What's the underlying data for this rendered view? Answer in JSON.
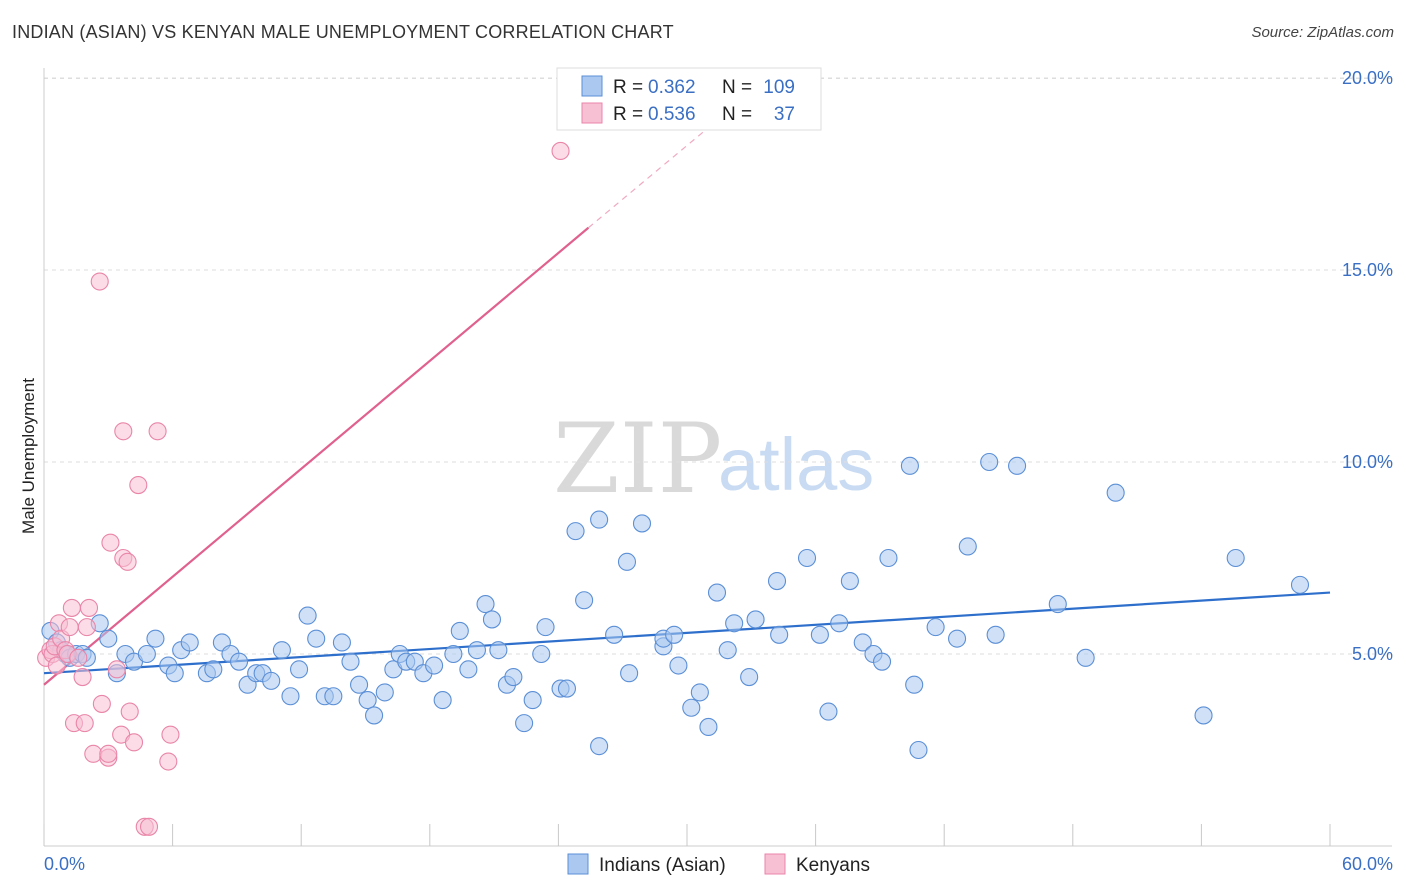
{
  "title": "INDIAN (ASIAN) VS KENYAN MALE UNEMPLOYMENT CORRELATION CHART",
  "source": "Source: ZipAtlas.com",
  "watermark": {
    "zip": "ZIP",
    "atlas": "atlas"
  },
  "colors": {
    "blue_fill": "#aac8f0",
    "blue_stroke": "#5b8fd6",
    "blue_line": "#2e6fcc",
    "pink_fill": "#f7c0d3",
    "pink_stroke": "#e985a8",
    "pink_line": "#e0608e",
    "grid": "#dddddd",
    "tick_text": "#3a6fc4"
  },
  "legend_top": {
    "rows": [
      {
        "r_label": "R =",
        "r_value": "0.362",
        "n_label": "N =",
        "n_value": "109",
        "series": "blue"
      },
      {
        "r_label": "R =",
        "r_value": "0.536",
        "n_label": "N =",
        "n_value": "37",
        "series": "pink"
      }
    ]
  },
  "legend_bottom": [
    {
      "label": "Indians (Asian)",
      "series": "blue"
    },
    {
      "label": "Kenyans",
      "series": "pink"
    }
  ],
  "chart_data": {
    "type": "scatter",
    "title": "INDIAN (ASIAN) VS KENYAN MALE UNEMPLOYMENT CORRELATION CHART",
    "xlabel": "",
    "ylabel": "Male Unemployment",
    "xlim": [
      0,
      60
    ],
    "ylim": [
      0,
      20
    ],
    "x_tick_labels": [
      "0.0%",
      "60.0%"
    ],
    "y_ticks": [
      5,
      10,
      15,
      20
    ],
    "y_tick_labels": [
      "5.0%",
      "10.0%",
      "15.0%",
      "20.0%"
    ],
    "grid": "horizontal dashed",
    "legend_placement": "top-center and bottom-center",
    "series": [
      {
        "name": "Indians (Asian)",
        "r": 0.362,
        "n": 109,
        "trendline": {
          "x": [
            0,
            60
          ],
          "y": [
            4.5,
            6.6
          ]
        },
        "points": [
          [
            0.3,
            5.6
          ],
          [
            0.6,
            5.3
          ],
          [
            0.8,
            5.1
          ],
          [
            1.0,
            5.0
          ],
          [
            1.2,
            4.9
          ],
          [
            1.5,
            5.0
          ],
          [
            1.8,
            5.0
          ],
          [
            2.0,
            4.9
          ],
          [
            2.6,
            5.8
          ],
          [
            3.0,
            5.4
          ],
          [
            3.4,
            4.5
          ],
          [
            3.8,
            5.0
          ],
          [
            4.2,
            4.8
          ],
          [
            4.8,
            5.0
          ],
          [
            5.2,
            5.4
          ],
          [
            5.8,
            4.7
          ],
          [
            6.1,
            4.5
          ],
          [
            6.4,
            5.1
          ],
          [
            6.8,
            5.3
          ],
          [
            7.6,
            4.5
          ],
          [
            7.9,
            4.6
          ],
          [
            8.3,
            5.3
          ],
          [
            8.7,
            5.0
          ],
          [
            9.1,
            4.8
          ],
          [
            9.5,
            4.2
          ],
          [
            9.9,
            4.5
          ],
          [
            10.2,
            4.5
          ],
          [
            10.6,
            4.3
          ],
          [
            11.1,
            5.1
          ],
          [
            11.5,
            3.9
          ],
          [
            11.9,
            4.6
          ],
          [
            12.3,
            6.0
          ],
          [
            12.7,
            5.4
          ],
          [
            13.1,
            3.9
          ],
          [
            13.5,
            3.9
          ],
          [
            13.9,
            5.3
          ],
          [
            14.3,
            4.8
          ],
          [
            14.7,
            4.2
          ],
          [
            15.1,
            3.8
          ],
          [
            15.4,
            3.4
          ],
          [
            15.9,
            4.0
          ],
          [
            16.3,
            4.6
          ],
          [
            16.6,
            5.0
          ],
          [
            16.9,
            4.8
          ],
          [
            17.3,
            4.8
          ],
          [
            17.7,
            4.5
          ],
          [
            18.2,
            4.7
          ],
          [
            18.6,
            3.8
          ],
          [
            19.1,
            5.0
          ],
          [
            19.4,
            5.6
          ],
          [
            19.8,
            4.6
          ],
          [
            20.2,
            5.1
          ],
          [
            20.6,
            6.3
          ],
          [
            20.9,
            5.9
          ],
          [
            21.2,
            5.1
          ],
          [
            21.6,
            4.2
          ],
          [
            21.9,
            4.4
          ],
          [
            22.4,
            3.2
          ],
          [
            22.8,
            3.8
          ],
          [
            23.2,
            5.0
          ],
          [
            23.4,
            5.7
          ],
          [
            24.1,
            4.1
          ],
          [
            24.4,
            4.1
          ],
          [
            24.8,
            8.2
          ],
          [
            25.2,
            6.4
          ],
          [
            25.9,
            8.5
          ],
          [
            25.9,
            2.6
          ],
          [
            26.6,
            5.5
          ],
          [
            27.2,
            7.4
          ],
          [
            27.3,
            4.5
          ],
          [
            27.9,
            8.4
          ],
          [
            28.9,
            5.2
          ],
          [
            28.9,
            5.4
          ],
          [
            29.4,
            5.5
          ],
          [
            29.6,
            4.7
          ],
          [
            30.2,
            3.6
          ],
          [
            30.6,
            4.0
          ],
          [
            31.0,
            3.1
          ],
          [
            31.4,
            6.6
          ],
          [
            31.9,
            5.1
          ],
          [
            32.2,
            5.8
          ],
          [
            32.9,
            4.4
          ],
          [
            33.2,
            5.9
          ],
          [
            34.2,
            6.9
          ],
          [
            34.3,
            5.5
          ],
          [
            35.6,
            7.5
          ],
          [
            36.2,
            5.5
          ],
          [
            36.6,
            3.5
          ],
          [
            37.1,
            5.8
          ],
          [
            37.6,
            6.9
          ],
          [
            38.2,
            5.3
          ],
          [
            38.7,
            5.0
          ],
          [
            39.1,
            4.8
          ],
          [
            39.4,
            7.5
          ],
          [
            40.4,
            9.9
          ],
          [
            40.6,
            4.2
          ],
          [
            40.8,
            2.5
          ],
          [
            41.6,
            5.7
          ],
          [
            42.6,
            5.4
          ],
          [
            43.1,
            7.8
          ],
          [
            44.1,
            10.0
          ],
          [
            44.4,
            5.5
          ],
          [
            45.4,
            9.9
          ],
          [
            47.3,
            6.3
          ],
          [
            48.6,
            4.9
          ],
          [
            50.0,
            9.2
          ],
          [
            54.1,
            3.4
          ],
          [
            55.6,
            7.5
          ],
          [
            58.6,
            6.8
          ]
        ]
      },
      {
        "name": "Kenyans",
        "r": 0.536,
        "n": 37,
        "trendline": {
          "x": [
            0,
            25.4
          ],
          "y": [
            4.2,
            16.1
          ]
        },
        "trendline_dashed": {
          "x": [
            25.4,
            31.2
          ],
          "y": [
            16.1,
            18.8
          ]
        },
        "points": [
          [
            0.1,
            4.9
          ],
          [
            0.3,
            5.1
          ],
          [
            0.4,
            5.0
          ],
          [
            0.5,
            5.2
          ],
          [
            0.6,
            4.7
          ],
          [
            0.7,
            5.8
          ],
          [
            0.8,
            5.4
          ],
          [
            1.0,
            5.1
          ],
          [
            1.1,
            5.0
          ],
          [
            1.2,
            5.7
          ],
          [
            1.3,
            6.2
          ],
          [
            1.4,
            3.2
          ],
          [
            1.6,
            4.9
          ],
          [
            1.8,
            4.4
          ],
          [
            1.9,
            3.2
          ],
          [
            2.0,
            5.7
          ],
          [
            2.1,
            6.2
          ],
          [
            2.3,
            2.4
          ],
          [
            2.6,
            14.7
          ],
          [
            2.7,
            3.7
          ],
          [
            3.0,
            2.3
          ],
          [
            3.0,
            2.4
          ],
          [
            3.1,
            7.9
          ],
          [
            3.4,
            4.6
          ],
          [
            3.6,
            2.9
          ],
          [
            3.7,
            7.5
          ],
          [
            3.7,
            10.8
          ],
          [
            3.9,
            7.4
          ],
          [
            4.0,
            3.5
          ],
          [
            4.2,
            2.7
          ],
          [
            4.4,
            9.4
          ],
          [
            4.7,
            0.5
          ],
          [
            4.9,
            0.5
          ],
          [
            5.3,
            10.8
          ],
          [
            5.8,
            2.2
          ],
          [
            5.9,
            2.9
          ],
          [
            24.1,
            18.1
          ]
        ]
      }
    ]
  }
}
